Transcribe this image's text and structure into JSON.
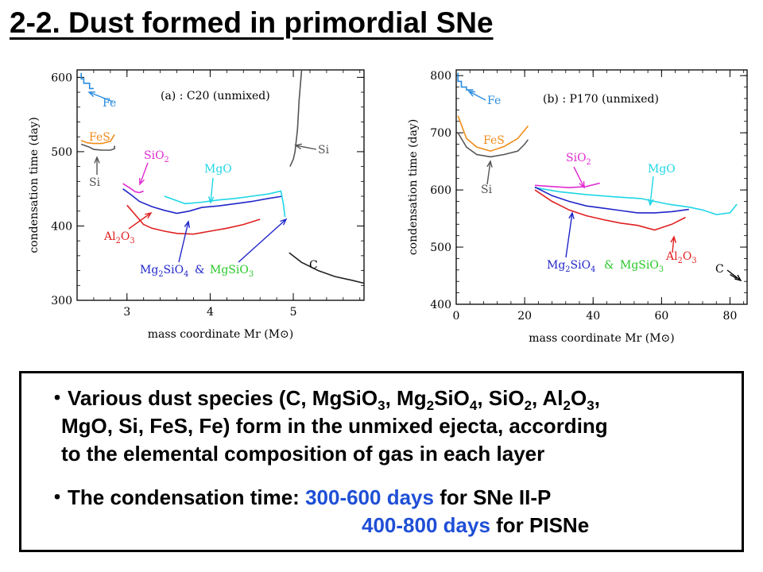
{
  "slide": {
    "title": "2-2. Dust formed in primordial SNe"
  },
  "colors": {
    "Fe": "#2a8ce0",
    "FeS": "#f08c1a",
    "Si": "#555555",
    "SiO2": "#e02cd0",
    "MgO": "#1fd6e6",
    "Mg2SiO4": "#2026c8",
    "MgSiO3": "#28c828",
    "Al2O3": "#e02020",
    "C": "#222222",
    "highlight": "#1f4fd6"
  },
  "chart_data": [
    {
      "type": "line",
      "title": "(a) : C20 (unmixed)",
      "xlabel": "mass coordinate M_r (M_⊙)",
      "ylabel": "condensation time (day)",
      "xlim": [
        2.4,
        5.85
      ],
      "ylim": [
        300,
        610
      ],
      "x_ticks": [
        3,
        4,
        5
      ],
      "y_ticks": [
        300,
        400,
        500,
        600
      ],
      "series": [
        {
          "name": "Fe",
          "x": [
            2.45,
            2.45,
            2.48,
            2.48,
            2.55,
            2.55,
            2.6
          ],
          "y": [
            606,
            598,
            598,
            592,
            592,
            585,
            585
          ]
        },
        {
          "name": "FeS",
          "x": [
            2.45,
            2.52,
            2.6,
            2.7,
            2.8,
            2.85
          ],
          "y": [
            515,
            512,
            511,
            511,
            514,
            523
          ]
        },
        {
          "name": "Si",
          "x": [
            2.45,
            2.55,
            2.6,
            2.7,
            2.8,
            2.85,
            2.85
          ],
          "y": [
            510,
            506,
            503,
            502,
            502,
            504,
            508
          ]
        },
        {
          "name": "SiO2",
          "x": [
            2.95,
            3.05,
            3.1,
            3.15,
            3.2
          ],
          "y": [
            457,
            450,
            446,
            445,
            447
          ]
        },
        {
          "name": "Mg2SiO4",
          "x": [
            2.95,
            3.05,
            3.15,
            3.3,
            3.45,
            3.6,
            3.75,
            3.9,
            4.1,
            4.3,
            4.5,
            4.7,
            4.87
          ],
          "y": [
            450,
            442,
            433,
            426,
            421,
            417,
            420,
            425,
            427,
            430,
            433,
            437,
            440
          ]
        },
        {
          "name": "Al2O3",
          "x": [
            3.0,
            3.1,
            3.2,
            3.3,
            3.45,
            3.6,
            3.8,
            4.0,
            4.2,
            4.4,
            4.6
          ],
          "y": [
            428,
            415,
            402,
            397,
            393,
            390,
            389,
            393,
            397,
            402,
            409
          ]
        },
        {
          "name": "MgO",
          "x": [
            3.45,
            3.7,
            3.9,
            4.1,
            4.3,
            4.5,
            4.7,
            4.85,
            4.88,
            4.9
          ],
          "y": [
            440,
            430,
            432,
            435,
            437,
            440,
            443,
            447,
            430,
            412
          ]
        },
        {
          "name": "Si",
          "x": [
            4.96,
            4.98,
            5.0,
            5.02,
            5.05,
            5.07,
            5.1
          ],
          "y": [
            480,
            485,
            490,
            500,
            530,
            570,
            610
          ]
        },
        {
          "name": "C",
          "x": [
            4.95,
            5.1,
            5.3,
            5.5,
            5.7,
            5.85
          ],
          "y": [
            364,
            351,
            340,
            332,
            327,
            323
          ]
        }
      ],
      "annotations": [
        "Fe",
        "FeS",
        "Si",
        "SiO2",
        "MgO",
        "Al2O3",
        "Mg2SiO4 & MgSiO3",
        "Si",
        "C"
      ]
    },
    {
      "type": "line",
      "title": "(b) : P170 (unmixed)",
      "xlabel": "mass coordinate M_r (M_⊙)",
      "ylabel": "condensation time (day)",
      "xlim": [
        0,
        85
      ],
      "ylim": [
        400,
        810
      ],
      "x_ticks": [
        0,
        20,
        40,
        60,
        80
      ],
      "y_ticks": [
        400,
        500,
        600,
        700,
        800
      ],
      "series": [
        {
          "name": "Fe",
          "x": [
            0.5,
            0.5,
            1.5,
            1.5,
            3,
            3,
            5
          ],
          "y": [
            805,
            790,
            790,
            780,
            780,
            775,
            775
          ]
        },
        {
          "name": "FeS",
          "x": [
            0.5,
            3,
            6,
            10,
            14,
            18,
            21
          ],
          "y": [
            730,
            690,
            675,
            668,
            676,
            690,
            712
          ]
        },
        {
          "name": "Si",
          "x": [
            0.5,
            3,
            6,
            10,
            14,
            18,
            20,
            21
          ],
          "y": [
            700,
            675,
            662,
            658,
            662,
            668,
            680,
            688
          ]
        },
        {
          "name": "SiO2",
          "x": [
            23,
            28,
            33,
            38,
            42
          ],
          "y": [
            608,
            606,
            604,
            606,
            612
          ]
        },
        {
          "name": "MgO",
          "x": [
            23,
            30,
            38,
            46,
            54,
            58,
            62,
            68,
            72,
            76,
            80,
            82
          ],
          "y": [
            604,
            597,
            592,
            588,
            585,
            580,
            575,
            570,
            565,
            557,
            560,
            575
          ]
        },
        {
          "name": "Mg2SiO4",
          "x": [
            23,
            28,
            33,
            38,
            43,
            48,
            53,
            58,
            63,
            68
          ],
          "y": [
            605,
            590,
            580,
            572,
            568,
            564,
            560,
            560,
            562,
            566
          ]
        },
        {
          "name": "Al2O3",
          "x": [
            23,
            28,
            33,
            38,
            43,
            48,
            53,
            58,
            63,
            67
          ],
          "y": [
            600,
            580,
            565,
            555,
            548,
            542,
            538,
            530,
            540,
            552
          ]
        },
        {
          "name": "C",
          "x": [
            80,
            82
          ],
          "y": [
            452,
            445
          ]
        }
      ],
      "annotations": [
        "Fe",
        "FeS",
        "Si",
        "SiO2",
        "MgO",
        "Mg2SiO4 & MgSiO3",
        "Al2O3",
        "C"
      ]
    }
  ],
  "summary": {
    "bullet1_marker": "・",
    "bullet1_line1_a": "Various dust species (C, MgSiO",
    "bullet1_line1_b": ", Mg",
    "bullet1_line1_c": "SiO",
    "bullet1_line1_d": ", SiO",
    "bullet1_line1_e": ", Al",
    "bullet1_line1_f": "O",
    "bullet1_line1_g": ",",
    "sub3": "3",
    "sub2": "2",
    "sub4": "4",
    "bullet1_line2": "MgO, Si, FeS, Fe) form in the unmixed ejecta, according",
    "bullet1_line3": "to the elemental composition of gas in each layer",
    "bullet2_marker": "・",
    "bullet2_label": "The condensation time:",
    "bullet2_range1": "300-600 days",
    "bullet2_suffix1": "for SNe II-P",
    "bullet2_range2": "400-800 days",
    "bullet2_suffix2": "for PISNe"
  }
}
